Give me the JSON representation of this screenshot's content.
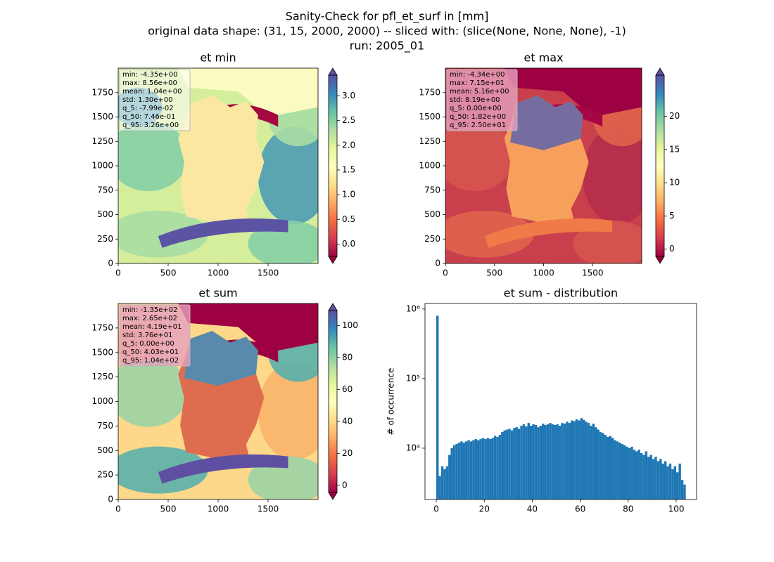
{
  "suptitle": [
    "Sanity-Check for pfl_et_surf in [mm]",
    "original data shape: (31, 15, 2000, 2000) -- sliced with: (slice(None, None, None), -1)",
    "run: 2005_01"
  ],
  "chart_data": [
    {
      "type": "image",
      "title": "et min",
      "xlim": [
        0,
        2000
      ],
      "ylim": [
        0,
        2000
      ],
      "xticks": [
        0,
        500,
        1000,
        1500
      ],
      "yticks": [
        0,
        250,
        500,
        750,
        1000,
        1250,
        1500,
        1750
      ],
      "colorbar": {
        "lim": [
          -0.25,
          3.42
        ],
        "ticks": [
          {
            "value": 0,
            "label": "0.0"
          },
          {
            "value": 0.5,
            "label": "0.5"
          },
          {
            "value": 1,
            "label": "1.0"
          },
          {
            "value": 1.5,
            "label": "1.5"
          },
          {
            "value": 2,
            "label": "2.0"
          },
          {
            "value": 2.5,
            "label": "2.5"
          },
          {
            "value": 3,
            "label": "3.0"
          }
        ]
      },
      "stats": [
        "min: -4.35e+00",
        "max: 8.56e+00",
        "mean: 1.04e+00",
        "std: 1.30e+00",
        "q_5: -7.99e-02",
        "q_50: 7.46e-01",
        "q_95: 3.26e+00"
      ]
    },
    {
      "type": "image",
      "title": "et max",
      "xlim": [
        0,
        2000
      ],
      "ylim": [
        0,
        2000
      ],
      "xticks": [
        0,
        500,
        1000,
        1500
      ],
      "yticks": [
        0,
        250,
        500,
        750,
        1000,
        1250,
        1500,
        1750
      ],
      "colorbar": {
        "lim": [
          -1.1,
          26.2
        ],
        "ticks": [
          0,
          5,
          10,
          15,
          20
        ]
      },
      "stats": [
        "min: -4.34e+00",
        "max: 7.15e+01",
        "mean: 5.16e+00",
        "std: 8.19e+00",
        "q_5: 0.00e+00",
        "q_50: 1.82e+00",
        "q_95: 2.50e+01"
      ]
    },
    {
      "type": "image",
      "title": "et sum",
      "xlim": [
        0,
        2000
      ],
      "ylim": [
        0,
        2000
      ],
      "xticks": [
        0,
        500,
        1000,
        1500
      ],
      "yticks": [
        0,
        250,
        500,
        750,
        1000,
        1250,
        1500,
        1750
      ],
      "colorbar": {
        "lim": [
          -4.5,
          109.4
        ],
        "ticks": [
          0,
          20,
          40,
          60,
          80,
          100
        ]
      },
      "stats": [
        "min: -1.35e+02",
        "max: 2.65e+02",
        "mean: 4.19e+01",
        "std: 3.76e+01",
        "q_5: 0.00e+00",
        "q_50: 4.03e+01",
        "q_95: 1.04e+02"
      ]
    },
    {
      "type": "histogram",
      "title": "et sum - distribution",
      "y_label": "# of occurrence",
      "log_y": true,
      "color": "#1f77b4",
      "xlim": [
        -4.7,
        108.5
      ],
      "xticks": [
        0,
        20,
        40,
        60,
        80,
        100
      ],
      "ylim": [
        1830,
        1200000
      ],
      "yticks": [
        {
          "value": 10000,
          "label": "10⁴"
        },
        {
          "value": 100000,
          "label": "10⁵"
        },
        {
          "value": 1000000,
          "label": "10⁶"
        }
      ],
      "bins": [
        0,
        1,
        2,
        3,
        4,
        5,
        6,
        7,
        8,
        9,
        10,
        11,
        12,
        13,
        14,
        15,
        16,
        17,
        18,
        19,
        20,
        21,
        22,
        23,
        24,
        25,
        26,
        27,
        28,
        29,
        30,
        31,
        32,
        33,
        34,
        35,
        36,
        37,
        38,
        39,
        40,
        41,
        42,
        43,
        44,
        45,
        46,
        47,
        48,
        49,
        50,
        51,
        52,
        53,
        54,
        55,
        56,
        57,
        58,
        59,
        60,
        61,
        62,
        63,
        64,
        65,
        66,
        67,
        68,
        69,
        70,
        71,
        72,
        73,
        74,
        75,
        76,
        77,
        78,
        79,
        80,
        81,
        82,
        83,
        84,
        85,
        86,
        87,
        88,
        89,
        90,
        91,
        92,
        93,
        94,
        95,
        96,
        97,
        98,
        99,
        100,
        101,
        102,
        103,
        104
      ],
      "values": [
        800000,
        4000,
        5500,
        5000,
        5500,
        8000,
        10000,
        11000,
        11500,
        12000,
        12500,
        12000,
        12500,
        13000,
        12500,
        13000,
        13500,
        13000,
        13500,
        14000,
        13500,
        14000,
        13500,
        14000,
        15000,
        14500,
        15500,
        17000,
        18000,
        18500,
        19000,
        18000,
        19500,
        20000,
        19000,
        21000,
        22000,
        20500,
        23000,
        21000,
        22000,
        21500,
        20000,
        21000,
        22500,
        21500,
        22000,
        23000,
        22000,
        21500,
        22000,
        21000,
        23000,
        22500,
        24000,
        23000,
        25000,
        24500,
        26000,
        25000,
        27000,
        25500,
        24000,
        23000,
        21000,
        22500,
        20000,
        18500,
        17000,
        16500,
        15500,
        14500,
        15000,
        14000,
        13000,
        12500,
        12000,
        11500,
        11000,
        10500,
        10000,
        10500,
        9500,
        9000,
        9500,
        8500,
        8000,
        9000,
        7500,
        8000,
        7000,
        7500,
        6500,
        7000,
        6000,
        6500,
        5500,
        6000,
        5000,
        5500,
        4500,
        6000,
        3500,
        3000
      ]
    }
  ]
}
